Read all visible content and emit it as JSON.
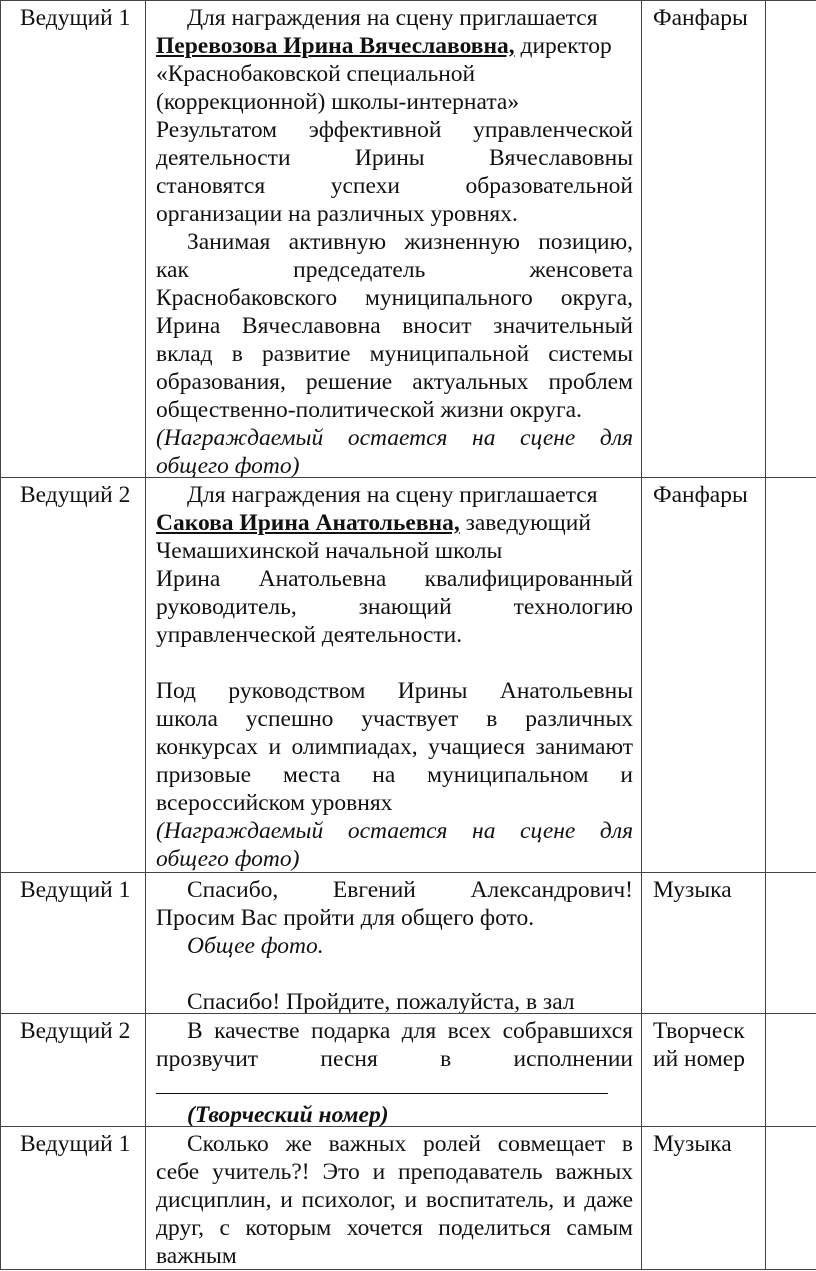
{
  "rows": [
    {
      "speaker": "Ведущий 1",
      "cue": "Фанфары",
      "lines": [
        "Для награждения на сцену приглашается",
        {
          "name": "Перевозова Ирина Вячеславовна,",
          "rest": " директор"
        },
        " «Краснобаковской специальной",
        "(коррекционной) школы-интерната»",
        "Результатом эффективной   управленческой",
        "деятельности Ирины Вячеславовны",
        "становятся успехи образовательной",
        "организации на различных уровнях.",
        "Занимая активную жизненную позицию,",
        "как председатель женсовета",
        "Краснобаковского муниципального округа,",
        "Ирина Вячеславовна вносит значительный",
        "вклад в развитие муниципальной системы",
        "образования, решение актуальных проблем",
        "общественно-политической жизни округа.",
        "(Награждаемый остается на сцене для",
        "общего фото)"
      ]
    },
    {
      "speaker": "Ведущий 2",
      "cue": "Фанфары",
      "lines": [
        "Для награждения на сцену приглашается",
        {
          "name": "Сакова Ирина Анатольевна,",
          "rest": " заведующий"
        },
        "Чемашихинской начальной школы",
        "Ирина Анатольевна квалифицированный",
        "руководитель, знающий технологию",
        "управленческой деятельности.",
        "",
        "Под руководством Ирины Анатольевны",
        "школа успешно участвует в различных",
        "конкурсах и олимпиадах, учащиеся занимают",
        "призовые места на муниципальном и",
        "всероссийском уровнях",
        "(Награждаемый остается на сцене для",
        "общего фото)"
      ]
    },
    {
      "speaker": "Ведущий 1",
      "cue": "Музыка",
      "lines": [
        "Спасибо, Евгений Александрович!",
        "Просим Вас пройти для общего фото.",
        "Общее фото.",
        "",
        "Спасибо! Пройдите, пожалуйста, в зал"
      ]
    },
    {
      "speaker": "Ведущий 2",
      "cue": "Творческий номер",
      "cue_lines": [
        "Творческ",
        "ий номер"
      ],
      "lines": [
        "В качестве подарка для всех собравшихся",
        "прозвучит песня в исполнении",
        "",
        "(Творческий номер)"
      ]
    },
    {
      "speaker": "Ведущий 1",
      "cue": "Музыка",
      "lines": [
        "Сколько же важных ролей совмещает в",
        "себе учитель?! Это и преподаватель важных",
        "дисциплин, и психолог, и воспитатель, и даже",
        "друг, с которым хочется поделиться самым",
        "важным"
      ]
    }
  ]
}
